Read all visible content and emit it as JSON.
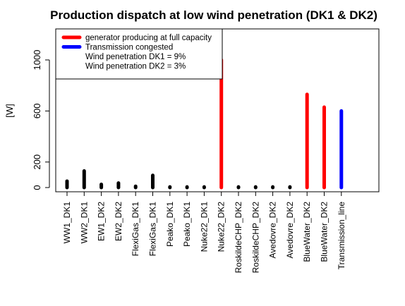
{
  "chart_data": {
    "type": "bar",
    "title": "Production dispatch at low wind penetration (DK1 & DK2)",
    "ylabel": "[W]",
    "xlabel": "",
    "ylim": [
      -40,
      1250
    ],
    "yticks": [
      0,
      200,
      600,
      1000
    ],
    "categories": [
      "WW1_DK1",
      "WW2_DK1",
      "EW1_DK2",
      "EW2_DK2",
      "FlexiGas_DK1",
      "FlexiGas_DK1",
      "Peako_DK1",
      "Peako_DK1",
      "Nuke22_DK1",
      "Nuke22_DK2",
      "RoskildeCHP_DK2",
      "RoskildeCHP_DK2",
      "Avedovre_DK2",
      "Avedovre_DK2",
      "BlueWater_DK2",
      "BlueWater_DK2",
      "Transmission_line"
    ],
    "values": [
      50,
      130,
      25,
      35,
      10,
      95,
      5,
      5,
      5,
      1000,
      5,
      5,
      5,
      5,
      730,
      630,
      600
    ],
    "status": [
      "normal",
      "normal",
      "normal",
      "normal",
      "normal",
      "normal",
      "normal",
      "normal",
      "normal",
      "full",
      "normal",
      "normal",
      "normal",
      "normal",
      "full",
      "full",
      "congested"
    ],
    "colors": {
      "normal": "#000000",
      "full": "#ff0000",
      "congested": "#0000ff"
    },
    "legend": {
      "position": "top-left",
      "entries": [
        {
          "label": "generator producing at full capacity",
          "color": "#ff0000"
        },
        {
          "label": "Transmission congested",
          "color": "#0000ff"
        },
        {
          "label": "Wind penetration DK1 = 9%",
          "color": ""
        },
        {
          "label": "Wind penetration DK2 = 3%",
          "color": ""
        }
      ]
    },
    "grid": false
  }
}
